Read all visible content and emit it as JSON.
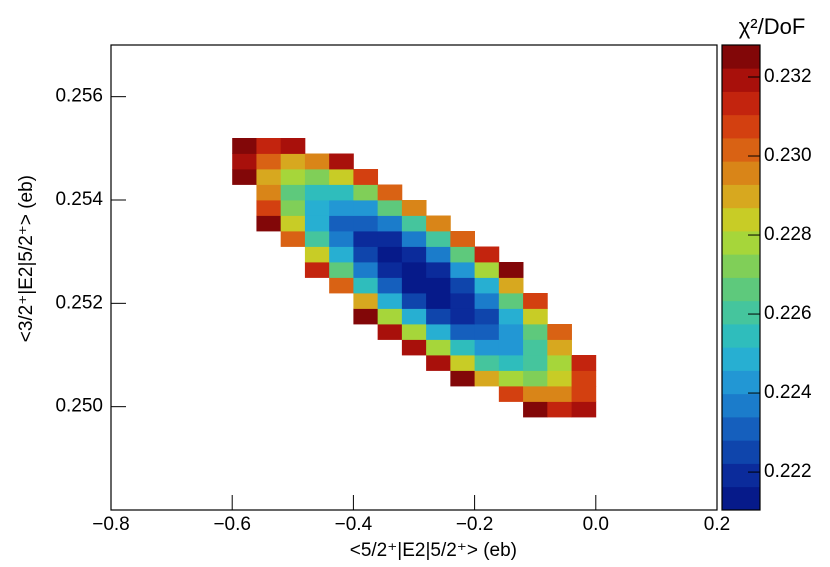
{
  "chart_data": {
    "type": "heatmap",
    "x_label": "<5/2⁺|E2|5/2⁺> (eb)",
    "y_label": "<3/2⁺|E2|5/2⁺> (eb)",
    "z_label": "χ²/DoF",
    "xlim": [
      -0.8,
      0.2
    ],
    "ylim": [
      0.248,
      0.257
    ],
    "zlim": [
      0.22104,
      0.23281
    ],
    "xticks": [
      {
        "value": -0.8,
        "label": "−0.8"
      },
      {
        "value": -0.6,
        "label": "−0.6"
      },
      {
        "value": -0.4,
        "label": "−0.4"
      },
      {
        "value": -0.2,
        "label": "−0.2"
      },
      {
        "value": 0,
        "label": "0.0"
      },
      0.2
    ],
    "yticks": [
      {
        "value": 0.25,
        "label": "0.250"
      },
      0.252,
      0.254,
      0.256
    ],
    "zticks": [
      0.222,
      0.224,
      0.226,
      0.228,
      {
        "value": 0.23,
        "label": "0.230"
      },
      0.232
    ],
    "palette": [
      "#061a8a",
      "#0b2b9b",
      "#0f45ac",
      "#155fbd",
      "#1b7ccb",
      "#2297d4",
      "#27afd2",
      "#2fbdbc",
      "#45c59d",
      "#5ec97c",
      "#80cf58",
      "#a6d63a",
      "#c8cc26",
      "#d7a81f",
      "#d98518",
      "#d96214",
      "#d34010",
      "#c3240e",
      "#a8100b",
      "#820708"
    ],
    "xbins": [
      -0.8,
      -0.76,
      -0.72,
      -0.68,
      -0.64,
      -0.6,
      -0.56,
      -0.52,
      -0.48,
      -0.44,
      -0.4,
      -0.36,
      -0.32,
      -0.28,
      -0.24,
      -0.2,
      -0.16,
      -0.12,
      -0.08,
      -0.04,
      0,
      0.04,
      0.08,
      0.12,
      0.16,
      0.2
    ],
    "ybins": [
      0.248,
      0.2483,
      0.2486,
      0.2489,
      0.2492,
      0.2495,
      0.2498,
      0.2501,
      0.2504,
      0.2507,
      0.251,
      0.2513,
      0.2516,
      0.2519,
      0.2522,
      0.2525,
      0.2528,
      0.2531,
      0.2534,
      0.2537,
      0.254,
      0.2543,
      0.2546,
      0.2549,
      0.2552,
      0.2555,
      0.2558,
      0.2561,
      0.2564,
      0.2567,
      0.257
    ],
    "z": [
      [
        null,
        null,
        null,
        null,
        null,
        null,
        null,
        null,
        null,
        null,
        null,
        null,
        null,
        null,
        null,
        null,
        null,
        null,
        null,
        null,
        null,
        null,
        null,
        null,
        null
      ],
      [
        null,
        null,
        null,
        null,
        null,
        null,
        null,
        null,
        null,
        null,
        null,
        null,
        null,
        null,
        null,
        null,
        null,
        null,
        null,
        null,
        null,
        null,
        null,
        null,
        null
      ],
      [
        null,
        null,
        null,
        null,
        null,
        null,
        null,
        null,
        null,
        null,
        null,
        null,
        null,
        null,
        null,
        null,
        null,
        null,
        null,
        null,
        null,
        null,
        null,
        null,
        null
      ],
      [
        null,
        null,
        null,
        null,
        null,
        null,
        null,
        null,
        null,
        null,
        null,
        null,
        null,
        null,
        null,
        null,
        null,
        null,
        null,
        null,
        null,
        null,
        null,
        null,
        null
      ],
      [
        null,
        null,
        null,
        null,
        null,
        null,
        null,
        null,
        null,
        null,
        null,
        null,
        null,
        null,
        null,
        null,
        null,
        null,
        null,
        null,
        null,
        null,
        null,
        null,
        null
      ],
      [
        null,
        null,
        null,
        null,
        null,
        null,
        null,
        null,
        null,
        null,
        null,
        null,
        null,
        null,
        null,
        null,
        null,
        null,
        null,
        null,
        null,
        null,
        null,
        null,
        null
      ],
      [
        null,
        null,
        null,
        null,
        null,
        null,
        null,
        null,
        null,
        null,
        null,
        null,
        null,
        null,
        null,
        null,
        null,
        0.23237,
        0.23152,
        0.23201,
        null,
        null,
        null,
        null,
        null
      ],
      [
        null,
        null,
        null,
        null,
        null,
        null,
        null,
        null,
        null,
        null,
        null,
        null,
        null,
        null,
        null,
        null,
        0.23061,
        0.22933,
        0.22941,
        0.23084,
        null,
        null,
        null,
        null,
        null
      ],
      [
        null,
        null,
        null,
        null,
        null,
        null,
        null,
        null,
        null,
        null,
        null,
        null,
        null,
        null,
        0.2323,
        0.22925,
        0.22756,
        0.22723,
        0.22824,
        0.23061,
        null,
        null,
        null,
        null,
        null
      ],
      [
        null,
        null,
        null,
        null,
        null,
        null,
        null,
        null,
        null,
        null,
        null,
        null,
        null,
        0.23178,
        0.22832,
        0.22621,
        0.22546,
        0.22606,
        0.22801,
        0.23131,
        null,
        null,
        null,
        null,
        null
      ],
      [
        null,
        null,
        null,
        null,
        null,
        null,
        null,
        null,
        null,
        null,
        null,
        null,
        0.23167,
        0.2278,
        0.22528,
        0.22411,
        0.22429,
        0.22582,
        0.22871,
        null,
        null,
        null,
        null,
        null,
        null
      ],
      [
        null,
        null,
        null,
        null,
        null,
        null,
        null,
        null,
        null,
        null,
        null,
        0.23199,
        0.22769,
        0.22476,
        0.22317,
        0.22294,
        0.22405,
        0.22652,
        0.23035,
        null,
        null,
        null,
        null,
        null,
        null
      ],
      [
        null,
        null,
        null,
        null,
        null,
        null,
        null,
        null,
        null,
        null,
        0.23271,
        0.22801,
        0.22465,
        0.22265,
        0.222,
        0.2227,
        0.22476,
        0.22816,
        null,
        null,
        null,
        null,
        null,
        null,
        null
      ],
      [
        null,
        null,
        null,
        null,
        null,
        null,
        null,
        null,
        null,
        null,
        0.22873,
        0.22497,
        0.22255,
        0.22148,
        0.22177,
        0.2234,
        0.22639,
        0.23074,
        null,
        null,
        null,
        null,
        null,
        null,
        null
      ],
      [
        null,
        null,
        null,
        null,
        null,
        null,
        null,
        null,
        null,
        0.22988,
        0.22569,
        0.22286,
        0.22138,
        0.22125,
        0.22247,
        0.22504,
        0.22897,
        null,
        null,
        null,
        null,
        null,
        null,
        null,
        null
      ],
      [
        null,
        null,
        null,
        null,
        null,
        null,
        null,
        null,
        0.23144,
        0.22684,
        0.22359,
        0.22169,
        0.22114,
        0.22195,
        0.22411,
        0.22762,
        0.23248,
        null,
        null,
        null,
        null,
        null,
        null,
        null,
        null
      ],
      [
        null,
        null,
        null,
        null,
        null,
        null,
        null,
        null,
        0.2284,
        0.22473,
        0.22242,
        0.22146,
        0.22184,
        0.22359,
        0.22668,
        0.23113,
        null,
        null,
        null,
        null,
        null,
        null,
        null,
        null,
        null
      ],
      [
        null,
        null,
        null,
        null,
        null,
        null,
        null,
        0.23037,
        0.22629,
        0.22356,
        0.22218,
        0.22216,
        0.22348,
        0.22616,
        0.23019,
        null,
        null,
        null,
        null,
        null,
        null,
        null,
        null,
        null,
        null
      ],
      [
        null,
        null,
        null,
        null,
        null,
        null,
        0.23276,
        0.22827,
        0.22512,
        0.22333,
        0.22288,
        0.2238,
        0.22606,
        0.22967,
        null,
        null,
        null,
        null,
        null,
        null,
        null,
        null,
        null,
        null,
        null
      ],
      [
        null,
        null,
        null,
        null,
        null,
        null,
        0.23066,
        0.2271,
        0.22489,
        0.22403,
        0.22452,
        0.22637,
        0.22957,
        null,
        null,
        null,
        null,
        null,
        null,
        null,
        null,
        null,
        null,
        null,
        null
      ],
      [
        null,
        null,
        null,
        null,
        null,
        null,
        0.22949,
        0.22686,
        0.22559,
        0.22567,
        0.2271,
        0.22988,
        null,
        null,
        null,
        null,
        null,
        null,
        null,
        null,
        null,
        null,
        null,
        null,
        null
      ],
      [
        null,
        null,
        null,
        null,
        null,
        0.23229,
        0.22925,
        0.22756,
        0.22723,
        0.22824,
        0.23061,
        null,
        null,
        null,
        null,
        null,
        null,
        null,
        null,
        null,
        null,
        null,
        null,
        null,
        null
      ],
      [
        null,
        null,
        null,
        null,
        null,
        0.23206,
        0.22996,
        0.2292,
        0.2298,
        0.23175,
        null,
        null,
        null,
        null,
        null,
        null,
        null,
        null,
        null,
        null,
        null,
        null,
        null,
        null,
        null
      ],
      [
        null,
        null,
        null,
        null,
        null,
        0.23276,
        0.23159,
        0.23178,
        null,
        null,
        null,
        null,
        null,
        null,
        null,
        null,
        null,
        null,
        null,
        null,
        null,
        null,
        null,
        null,
        null
      ],
      [
        null,
        null,
        null,
        null,
        null,
        null,
        null,
        null,
        null,
        null,
        null,
        null,
        null,
        null,
        null,
        null,
        null,
        null,
        null,
        null,
        null,
        null,
        null,
        null,
        null
      ],
      [
        null,
        null,
        null,
        null,
        null,
        null,
        null,
        null,
        null,
        null,
        null,
        null,
        null,
        null,
        null,
        null,
        null,
        null,
        null,
        null,
        null,
        null,
        null,
        null,
        null
      ],
      [
        null,
        null,
        null,
        null,
        null,
        null,
        null,
        null,
        null,
        null,
        null,
        null,
        null,
        null,
        null,
        null,
        null,
        null,
        null,
        null,
        null,
        null,
        null,
        null,
        null
      ],
      [
        null,
        null,
        null,
        null,
        null,
        null,
        null,
        null,
        null,
        null,
        null,
        null,
        null,
        null,
        null,
        null,
        null,
        null,
        null,
        null,
        null,
        null,
        null,
        null,
        null
      ],
      [
        null,
        null,
        null,
        null,
        null,
        null,
        null,
        null,
        null,
        null,
        null,
        null,
        null,
        null,
        null,
        null,
        null,
        null,
        null,
        null,
        null,
        null,
        null,
        null,
        null
      ],
      [
        null,
        null,
        null,
        null,
        null,
        null,
        null,
        null,
        null,
        null,
        null,
        null,
        null,
        null,
        null,
        null,
        null,
        null,
        null,
        null,
        null,
        null,
        null,
        null,
        null
      ]
    ]
  }
}
